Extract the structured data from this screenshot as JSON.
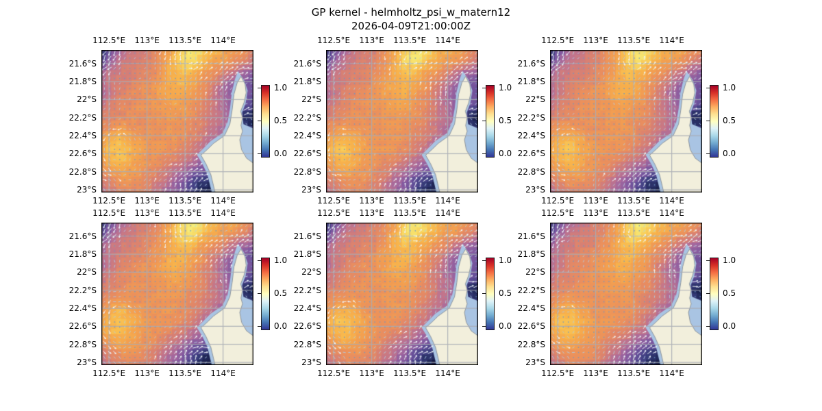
{
  "chart_data": {
    "type": "heatmap",
    "title": "GP kernel - helmholtz_psi_w_matern12",
    "subtitle": "2026-04-09T21:00:00Z",
    "layout": {
      "rows": 2,
      "cols": 3,
      "panel_count": 6,
      "grid": true,
      "colorbar_position": "right-of-each-panel"
    },
    "x_tick_labels": [
      "112.5°E",
      "113°E",
      "113.5°E",
      "114°E"
    ],
    "y_tick_labels": [
      "21.6°S",
      "21.8°S",
      "22°S",
      "22.2°S",
      "22.4°S",
      "22.6°S",
      "22.8°S",
      "23°S"
    ],
    "x_ticks_deg_east": [
      112.5,
      113.0,
      113.5,
      114.0
    ],
    "y_ticks_deg_south": [
      21.6,
      21.8,
      22.0,
      22.2,
      22.4,
      22.6,
      22.8,
      23.0
    ],
    "lon_extent_deg_east": [
      112.4,
      114.4
    ],
    "lat_extent_deg_south": [
      21.45,
      23.03
    ],
    "colorbar": {
      "tick_labels": [
        "1.0",
        "0.5",
        "0.0"
      ],
      "vmin": 0.0,
      "vmax": 1.0,
      "colors_top_to_bottom": [
        "#a50026",
        "#d73027",
        "#f46d43",
        "#fdae61",
        "#fee090",
        "#ffffbf",
        "#e0f3f8",
        "#abd9e9",
        "#74add1",
        "#4575b4",
        "#313695"
      ]
    },
    "field_grid": {
      "description": "normalized psi field sampled on a coarse grid, row 0 = north (top), values estimated from pixels",
      "ncols": 16,
      "nrows": 14,
      "values": [
        [
          0.12,
          0.3,
          0.48,
          0.54,
          0.58,
          0.62,
          0.7,
          0.8,
          0.93,
          1.0,
          0.94,
          0.84,
          0.8,
          0.78,
          0.72,
          0.66
        ],
        [
          0.22,
          0.42,
          0.54,
          0.58,
          0.6,
          0.64,
          0.72,
          0.82,
          0.96,
          0.97,
          0.87,
          0.8,
          0.76,
          0.72,
          0.64,
          0.58
        ],
        [
          0.42,
          0.54,
          0.58,
          0.6,
          0.62,
          0.66,
          0.73,
          0.83,
          0.88,
          0.84,
          0.77,
          0.71,
          0.64,
          0.55,
          0.46,
          0.4
        ],
        [
          0.5,
          0.56,
          0.6,
          0.63,
          0.66,
          0.7,
          0.75,
          0.81,
          0.85,
          0.79,
          0.71,
          0.63,
          0.52,
          0.4,
          0.34,
          0.3
        ],
        [
          0.48,
          0.55,
          0.62,
          0.66,
          0.7,
          0.72,
          0.77,
          0.82,
          0.8,
          0.74,
          0.67,
          0.57,
          0.45,
          0.36,
          0.32,
          0.3
        ],
        [
          0.54,
          0.6,
          0.64,
          0.68,
          0.7,
          0.72,
          0.74,
          0.78,
          0.76,
          0.72,
          0.65,
          0.57,
          0.48,
          0.38,
          0.3,
          0.26
        ],
        [
          0.6,
          0.63,
          0.66,
          0.7,
          0.7,
          0.7,
          0.72,
          0.74,
          0.72,
          0.69,
          0.63,
          0.56,
          0.5,
          0.42,
          0.08,
          0.04
        ],
        [
          0.66,
          0.7,
          0.72,
          0.7,
          0.68,
          0.7,
          0.72,
          0.72,
          0.7,
          0.66,
          0.61,
          0.55,
          0.48,
          0.4,
          0.12,
          0.08
        ],
        [
          0.72,
          0.8,
          0.84,
          0.78,
          0.72,
          0.7,
          0.72,
          0.72,
          0.7,
          0.64,
          0.58,
          0.5,
          0.44,
          0.38,
          0.36,
          0.34
        ],
        [
          0.78,
          0.87,
          0.88,
          0.82,
          0.76,
          0.72,
          0.72,
          0.7,
          0.66,
          0.6,
          0.52,
          0.44,
          0.4,
          0.36,
          0.34,
          0.32
        ],
        [
          0.76,
          0.84,
          0.86,
          0.8,
          0.74,
          0.7,
          0.68,
          0.64,
          0.58,
          0.52,
          0.44,
          0.38,
          0.35,
          0.33,
          0.31,
          0.3
        ],
        [
          0.68,
          0.76,
          0.8,
          0.76,
          0.72,
          0.68,
          0.62,
          0.55,
          0.48,
          0.4,
          0.32,
          0.28,
          0.3,
          0.31,
          0.3,
          0.28
        ],
        [
          0.58,
          0.64,
          0.7,
          0.7,
          0.68,
          0.62,
          0.55,
          0.46,
          0.36,
          0.22,
          0.1,
          0.06,
          0.24,
          0.29,
          0.29,
          0.27
        ],
        [
          0.52,
          0.58,
          0.64,
          0.66,
          0.64,
          0.58,
          0.5,
          0.42,
          0.32,
          0.16,
          0.06,
          0.02,
          0.2,
          0.27,
          0.27,
          0.25
        ]
      ]
    },
    "fill_colormap_stops": [
      [
        0.0,
        "#11163a"
      ],
      [
        0.06,
        "#232a5c"
      ],
      [
        0.14,
        "#3b3f7e"
      ],
      [
        0.24,
        "#5e4d96"
      ],
      [
        0.34,
        "#8059a0"
      ],
      [
        0.44,
        "#a4689e"
      ],
      [
        0.52,
        "#c1758d"
      ],
      [
        0.6,
        "#d98172"
      ],
      [
        0.68,
        "#ea8f5e"
      ],
      [
        0.76,
        "#f3a050"
      ],
      [
        0.84,
        "#f8b54c"
      ],
      [
        0.92,
        "#f9d35e"
      ],
      [
        1.0,
        "#f5ee7a"
      ]
    ],
    "quiver": {
      "strong_arrow_color": "#eef5fa",
      "medium_arrow_color": "#b0cde4",
      "weak_dot_color": "#6e98c4",
      "grid_spacing_px": 7.4
    },
    "map": {
      "land_color": "#f2efdc",
      "coastal_water_color": "#a9c4e3",
      "land_edge_color": "#8f969c",
      "gridline_color": "#a8acb4",
      "frame_color": "#000000",
      "land_polygon": [
        [
          0.918,
          0.185
        ],
        [
          0.945,
          0.24
        ],
        [
          0.952,
          0.3
        ],
        [
          0.938,
          0.37
        ],
        [
          0.916,
          0.43
        ],
        [
          0.928,
          0.475
        ],
        [
          0.918,
          0.53
        ],
        [
          0.928,
          0.57
        ],
        [
          0.91,
          0.63
        ],
        [
          0.922,
          0.7
        ],
        [
          0.955,
          0.76
        ],
        [
          1.0,
          0.795
        ],
        [
          1.0,
          1.0
        ],
        [
          0.748,
          1.0
        ],
        [
          0.72,
          0.875
        ],
        [
          0.688,
          0.8
        ],
        [
          0.655,
          0.738
        ],
        [
          0.7,
          0.695
        ],
        [
          0.738,
          0.655
        ],
        [
          0.81,
          0.6
        ],
        [
          0.845,
          0.52
        ],
        [
          0.86,
          0.42
        ],
        [
          0.872,
          0.31
        ],
        [
          0.893,
          0.23
        ]
      ],
      "water_polygon": [
        [
          0.898,
          0.148
        ],
        [
          0.938,
          0.21
        ],
        [
          0.962,
          0.285
        ],
        [
          0.948,
          0.375
        ],
        [
          0.925,
          0.44
        ],
        [
          0.934,
          0.52
        ],
        [
          1.0,
          0.55
        ],
        [
          1.0,
          1.0
        ],
        [
          0.726,
          1.0
        ],
        [
          0.697,
          0.873
        ],
        [
          0.662,
          0.795
        ],
        [
          0.628,
          0.735
        ],
        [
          0.678,
          0.683
        ],
        [
          0.718,
          0.64
        ],
        [
          0.796,
          0.583
        ],
        [
          0.83,
          0.505
        ],
        [
          0.846,
          0.41
        ],
        [
          0.858,
          0.295
        ],
        [
          0.878,
          0.205
        ]
      ]
    }
  },
  "figure": {
    "background": "#ffffff"
  }
}
